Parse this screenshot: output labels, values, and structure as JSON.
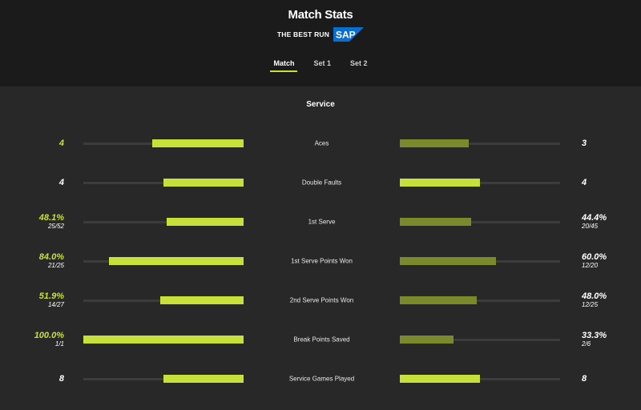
{
  "header": {
    "title": "Match Stats",
    "sponsor_text": "THE BEST RUN",
    "sponsor_logo_text": "SAP",
    "sponsor_logo_color": "#0a6ed1"
  },
  "tabs": [
    {
      "label": "Match",
      "active": true
    },
    {
      "label": "Set 1",
      "active": false
    },
    {
      "label": "Set 2",
      "active": false
    }
  ],
  "section": {
    "title": "Service"
  },
  "colors": {
    "accent": "#c8e03a",
    "accent_dim": "#7a8a2a",
    "track": "#3c3c3c"
  },
  "stats": [
    {
      "label": "Aces",
      "left": {
        "value": "4",
        "sub": "",
        "fraction": 0.57
      },
      "right": {
        "value": "3",
        "sub": "",
        "fraction": 0.43
      },
      "left_highlight": true,
      "right_win": false
    },
    {
      "label": "Double Faults",
      "left": {
        "value": "4",
        "sub": "",
        "fraction": 0.5
      },
      "right": {
        "value": "4",
        "sub": "",
        "fraction": 0.5
      },
      "left_highlight": false,
      "right_win": true
    },
    {
      "label": "1st Serve",
      "left": {
        "value": "48.1%",
        "sub": "25/52",
        "fraction": 0.481
      },
      "right": {
        "value": "44.4%",
        "sub": "20/45",
        "fraction": 0.444
      },
      "left_highlight": true,
      "right_win": false
    },
    {
      "label": "1st Serve Points Won",
      "left": {
        "value": "84.0%",
        "sub": "21/25",
        "fraction": 0.84
      },
      "right": {
        "value": "60.0%",
        "sub": "12/20",
        "fraction": 0.6
      },
      "left_highlight": true,
      "right_win": false
    },
    {
      "label": "2nd Serve Points Won",
      "left": {
        "value": "51.9%",
        "sub": "14/27",
        "fraction": 0.519
      },
      "right": {
        "value": "48.0%",
        "sub": "12/25",
        "fraction": 0.48
      },
      "left_highlight": true,
      "right_win": false
    },
    {
      "label": "Break Points Saved",
      "left": {
        "value": "100.0%",
        "sub": "1/1",
        "fraction": 1.0
      },
      "right": {
        "value": "33.3%",
        "sub": "2/6",
        "fraction": 0.333
      },
      "left_highlight": true,
      "right_win": false
    },
    {
      "label": "Service Games Played",
      "left": {
        "value": "8",
        "sub": "",
        "fraction": 0.5
      },
      "right": {
        "value": "8",
        "sub": "",
        "fraction": 0.5
      },
      "left_highlight": false,
      "right_win": true
    }
  ]
}
